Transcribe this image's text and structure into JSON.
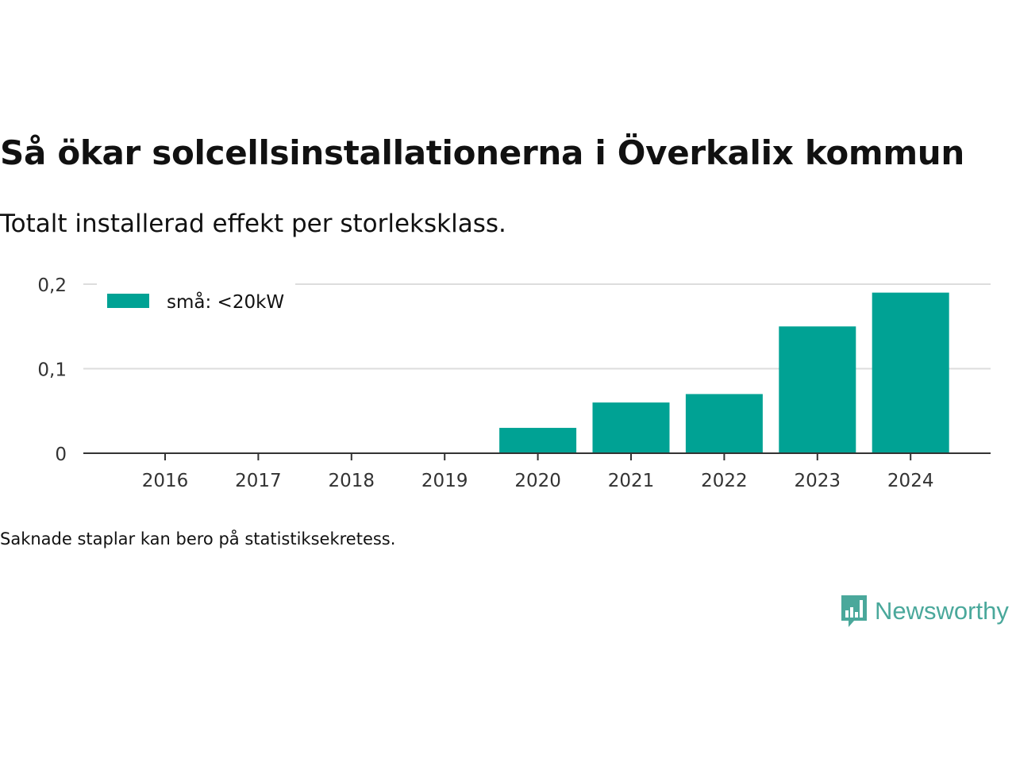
{
  "title": "Så ökar solcellsinstallationerna i Överkalix kommun",
  "subtitle": "Totalt installerad effekt per storleksklass.",
  "note": "Saknade staplar kan bero på statistiksekretess.",
  "brand": {
    "name": "Newsworthy",
    "color": "#4aa89b",
    "logo_icon": "bar-chart-speech-bubble-icon"
  },
  "chart_data": {
    "type": "bar",
    "categories": [
      "2016",
      "2017",
      "2018",
      "2019",
      "2020",
      "2021",
      "2022",
      "2023",
      "2024"
    ],
    "series": [
      {
        "name": "små: <20kW",
        "color": "#00a294",
        "values": [
          0,
          0,
          0,
          0,
          0.03,
          0.06,
          0.07,
          0.15,
          0.19
        ]
      }
    ],
    "xlabel": "",
    "ylabel": "",
    "ylim": [
      0,
      0.2
    ],
    "yticks": [
      0,
      0.1,
      0.2
    ],
    "ytick_labels": [
      "0",
      "0,1",
      "0,2"
    ],
    "grid": true,
    "legend_position": "top-left"
  }
}
